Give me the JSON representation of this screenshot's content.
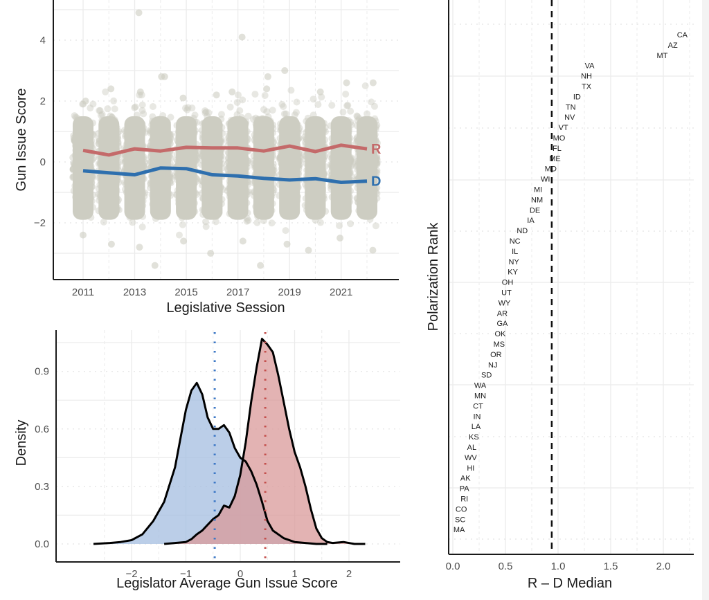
{
  "chart_data": [
    {
      "type": "scatter",
      "panel": "top-left",
      "title": "",
      "xlabel": "Legislative Session",
      "ylabel": "Gun Issue Score",
      "x_ticks": [
        "2011",
        "2013",
        "2015",
        "2017",
        "2019",
        "2021"
      ],
      "y_ticks": [
        "−2",
        "0",
        "2",
        "4"
      ],
      "xlim": [
        2010.5,
        2022.5
      ],
      "ylim": [
        -3.6,
        5.1
      ],
      "grid": true,
      "sessions": [
        2011,
        2012,
        2013,
        2014,
        2015,
        2016,
        2017,
        2018,
        2019,
        2020,
        2021,
        2022
      ],
      "point_color": "#cdcdc2",
      "jitter_band_ranges": [
        {
          "session": 2011,
          "low": -2.4,
          "high": 2.0
        },
        {
          "session": 2012,
          "low": -2.7,
          "high": 2.4
        },
        {
          "session": 2013,
          "low": -2.8,
          "high": 2.3
        },
        {
          "session": 2014,
          "low": -3.4,
          "high": 2.8
        },
        {
          "session": 2015,
          "low": -2.6,
          "high": 2.1
        },
        {
          "session": 2016,
          "low": -3.0,
          "high": 2.2
        },
        {
          "session": 2017,
          "low": -2.6,
          "high": 2.3
        },
        {
          "session": 2018,
          "low": -3.4,
          "high": 2.4
        },
        {
          "session": 2019,
          "low": -2.7,
          "high": 3.0
        },
        {
          "session": 2020,
          "low": -2.9,
          "high": 2.3
        },
        {
          "session": 2021,
          "low": -2.5,
          "high": 2.6
        },
        {
          "session": 2022,
          "low": -2.9,
          "high": 2.6
        }
      ],
      "outliers": [
        {
          "session": 2013,
          "value": 4.9
        },
        {
          "session": 2017,
          "value": 4.1
        },
        {
          "session": 2014,
          "value": 2.8
        },
        {
          "session": 2018,
          "value": 2.8
        }
      ],
      "series": [
        {
          "name": "R",
          "color": "#c46a6a",
          "values": [
            0.38,
            0.23,
            0.43,
            0.36,
            0.48,
            0.46,
            0.46,
            0.36,
            0.52,
            0.34,
            0.55,
            0.43
          ]
        },
        {
          "name": "D",
          "color": "#2e6fae",
          "values": [
            -0.29,
            -0.36,
            -0.42,
            -0.2,
            -0.22,
            -0.42,
            -0.46,
            -0.54,
            -0.59,
            -0.55,
            -0.67,
            -0.63
          ]
        }
      ]
    },
    {
      "type": "area",
      "panel": "bottom-left",
      "title": "",
      "xlabel": "Legislator Average Gun Issue Score",
      "ylabel": "Density",
      "x_ticks": [
        "−2",
        "−1",
        "0",
        "1",
        "2"
      ],
      "y_ticks": [
        "0.0",
        "0.3",
        "0.6",
        "0.9"
      ],
      "xlim": [
        -2.9,
        2.45
      ],
      "ylim": [
        -0.05,
        1.12
      ],
      "grid": true,
      "series": [
        {
          "name": "D",
          "fill": "#a4bde0",
          "median": -0.47,
          "median_color": "#3d78c6",
          "x": [
            -2.7,
            -2.4,
            -2.2,
            -2.0,
            -1.8,
            -1.6,
            -1.4,
            -1.2,
            -1.1,
            -1.0,
            -0.9,
            -0.8,
            -0.7,
            -0.6,
            -0.5,
            -0.4,
            -0.3,
            -0.2,
            -0.1,
            0.0,
            0.1,
            0.2,
            0.3,
            0.4,
            0.5,
            0.6,
            0.8,
            1.0,
            1.2,
            1.4,
            1.6
          ],
          "y": [
            0.0,
            0.005,
            0.01,
            0.02,
            0.05,
            0.12,
            0.22,
            0.4,
            0.55,
            0.7,
            0.8,
            0.84,
            0.78,
            0.66,
            0.6,
            0.6,
            0.62,
            0.58,
            0.5,
            0.45,
            0.43,
            0.38,
            0.31,
            0.22,
            0.12,
            0.07,
            0.03,
            0.01,
            0.005,
            0.0,
            0.0
          ]
        },
        {
          "name": "R",
          "fill": "#d99a9a",
          "median": 0.46,
          "median_color": "#c4504d",
          "x": [
            -1.4,
            -1.2,
            -1.0,
            -0.9,
            -0.8,
            -0.7,
            -0.6,
            -0.5,
            -0.4,
            -0.3,
            -0.2,
            -0.1,
            0.0,
            0.1,
            0.2,
            0.3,
            0.4,
            0.5,
            0.6,
            0.7,
            0.8,
            0.9,
            1.0,
            1.1,
            1.2,
            1.3,
            1.4,
            1.5,
            1.6,
            1.7,
            1.9,
            2.1,
            2.3
          ],
          "y": [
            0.0,
            0.005,
            0.01,
            0.025,
            0.05,
            0.07,
            0.1,
            0.13,
            0.15,
            0.2,
            0.19,
            0.25,
            0.36,
            0.53,
            0.74,
            0.92,
            1.07,
            1.04,
            1.0,
            0.88,
            0.74,
            0.6,
            0.48,
            0.4,
            0.3,
            0.18,
            0.08,
            0.03,
            0.01,
            0.005,
            0.01,
            0.0,
            0.0
          ]
        }
      ]
    },
    {
      "type": "scatter",
      "panel": "right",
      "title": "",
      "xlabel": "R – D Median",
      "ylabel": "Polarization Rank",
      "x_ticks": [
        "0.0",
        "0.5",
        "1.0",
        "1.5",
        "2.0"
      ],
      "xlim": [
        -0.03,
        2.3
      ],
      "reference_line": {
        "x": 0.94,
        "style": "dashed"
      },
      "grid": true,
      "points": [
        {
          "state": "CA",
          "value": 2.18
        },
        {
          "state": "AZ",
          "value": 2.09
        },
        {
          "state": "MT",
          "value": 1.99
        },
        {
          "state": "VA",
          "value": 1.3
        },
        {
          "state": "NH",
          "value": 1.27
        },
        {
          "state": "TX",
          "value": 1.27
        },
        {
          "state": "ID",
          "value": 1.18
        },
        {
          "state": "TN",
          "value": 1.12
        },
        {
          "state": "NV",
          "value": 1.11
        },
        {
          "state": "VT",
          "value": 1.05
        },
        {
          "state": "MO",
          "value": 1.01
        },
        {
          "state": "FL",
          "value": 0.99
        },
        {
          "state": "ME",
          "value": 0.97
        },
        {
          "state": "MD",
          "value": 0.93
        },
        {
          "state": "WI",
          "value": 0.88
        },
        {
          "state": "MI",
          "value": 0.81
        },
        {
          "state": "NM",
          "value": 0.8
        },
        {
          "state": "DE",
          "value": 0.78
        },
        {
          "state": "IA",
          "value": 0.74
        },
        {
          "state": "ND",
          "value": 0.66
        },
        {
          "state": "NC",
          "value": 0.59
        },
        {
          "state": "IL",
          "value": 0.59
        },
        {
          "state": "NY",
          "value": 0.58
        },
        {
          "state": "KY",
          "value": 0.57
        },
        {
          "state": "OH",
          "value": 0.52
        },
        {
          "state": "UT",
          "value": 0.51
        },
        {
          "state": "WY",
          "value": 0.49
        },
        {
          "state": "AR",
          "value": 0.47
        },
        {
          "state": "GA",
          "value": 0.47
        },
        {
          "state": "OK",
          "value": 0.45
        },
        {
          "state": "MS",
          "value": 0.44
        },
        {
          "state": "OR",
          "value": 0.41
        },
        {
          "state": "NJ",
          "value": 0.38
        },
        {
          "state": "SD",
          "value": 0.32
        },
        {
          "state": "WA",
          "value": 0.26
        },
        {
          "state": "MN",
          "value": 0.26
        },
        {
          "state": "CT",
          "value": 0.24
        },
        {
          "state": "IN",
          "value": 0.23
        },
        {
          "state": "LA",
          "value": 0.22
        },
        {
          "state": "KS",
          "value": 0.2
        },
        {
          "state": "AL",
          "value": 0.18
        },
        {
          "state": "WV",
          "value": 0.17
        },
        {
          "state": "HI",
          "value": 0.17
        },
        {
          "state": "AK",
          "value": 0.12
        },
        {
          "state": "PA",
          "value": 0.11
        },
        {
          "state": "RI",
          "value": 0.11
        },
        {
          "state": "CO",
          "value": 0.08
        },
        {
          "state": "SC",
          "value": 0.07
        },
        {
          "state": "MA",
          "value": 0.06
        }
      ]
    }
  ]
}
